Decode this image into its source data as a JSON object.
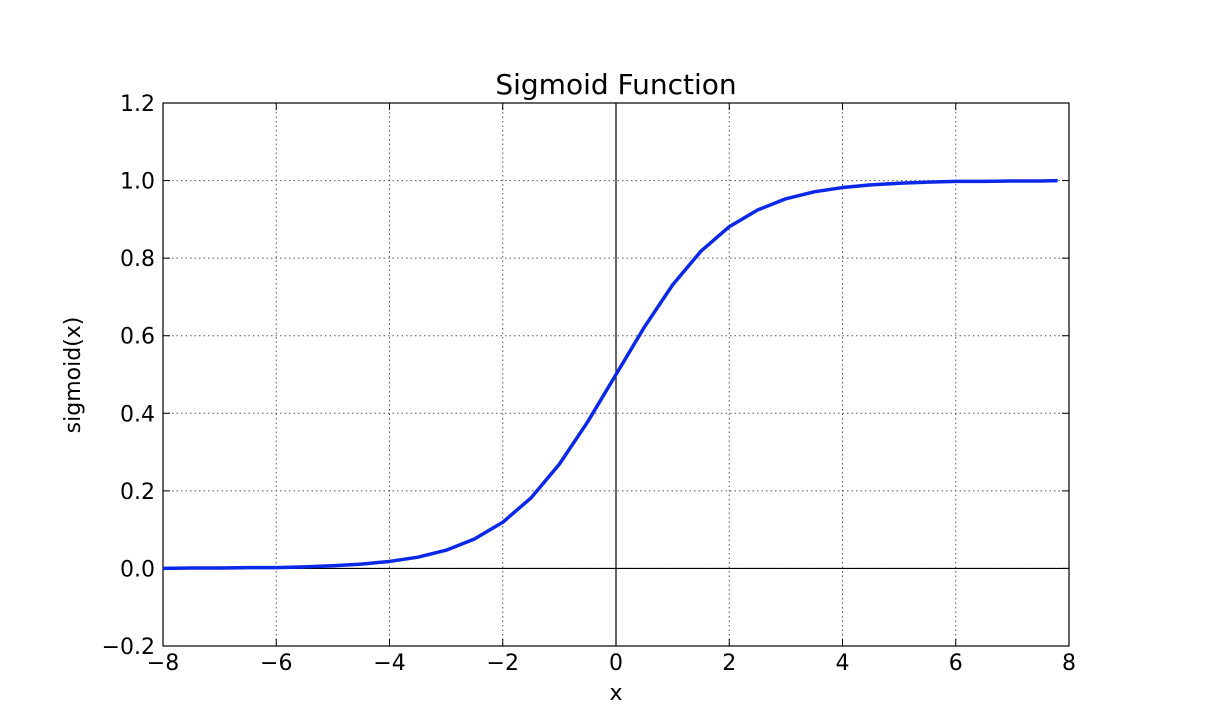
{
  "chart_data": {
    "type": "line",
    "title": "Sigmoid Function",
    "x_label": "x",
    "y_label": "sigmoid(x)",
    "x": [
      -8,
      -7.5,
      -7,
      -6.5,
      -6,
      -5.5,
      -5,
      -4.5,
      -4,
      -3.5,
      -3,
      -2.5,
      -2,
      -1.5,
      -1,
      -0.5,
      0,
      0.5,
      1,
      1.5,
      2,
      2.5,
      3,
      3.5,
      4,
      4.5,
      5,
      5.5,
      6,
      6.5,
      7,
      7.5,
      7.8
    ],
    "series": [
      {
        "name": "sigmoid(x)",
        "color": "#0a28e8",
        "values": [
          0.0,
          0.001,
          0.001,
          0.002,
          0.002,
          0.004,
          0.007,
          0.011,
          0.018,
          0.029,
          0.047,
          0.076,
          0.119,
          0.182,
          0.269,
          0.378,
          0.5,
          0.622,
          0.731,
          0.818,
          0.881,
          0.924,
          0.953,
          0.971,
          0.982,
          0.989,
          0.993,
          0.996,
          0.998,
          0.998,
          0.999,
          0.999,
          1.0
        ]
      }
    ],
    "xlim": [
      -8,
      8
    ],
    "xticks": [
      {
        "value": -8,
        "label": "−8"
      },
      {
        "value": -6,
        "label": "−6"
      },
      {
        "value": -4,
        "label": "−4"
      },
      {
        "value": -2,
        "label": "−2"
      },
      0,
      2,
      4,
      6,
      8
    ],
    "ylim": [
      -0.2,
      1.2
    ],
    "yticks": [
      {
        "value": -0.2,
        "label": "−0.2"
      },
      {
        "value": 0,
        "label": "0.0"
      },
      0.2,
      0.4,
      0.6,
      0.8,
      {
        "value": 1,
        "label": "1.0"
      },
      1.2
    ],
    "grid": true,
    "zero_lines": true
  }
}
